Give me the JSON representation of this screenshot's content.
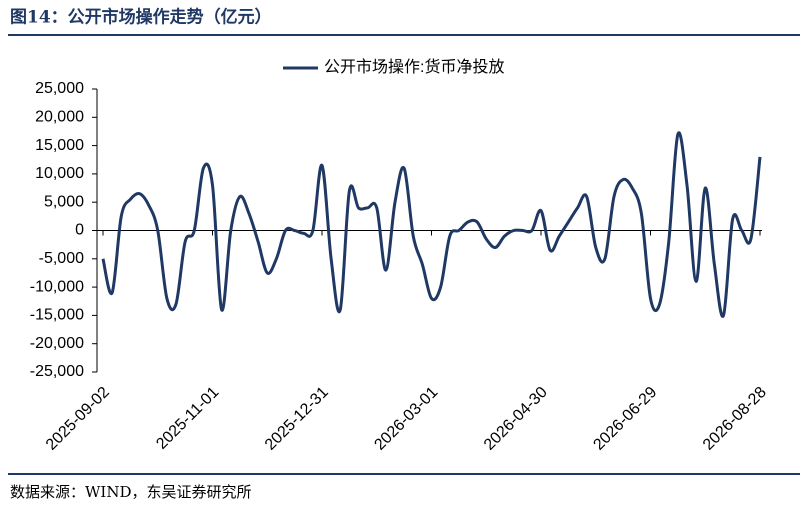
{
  "chart_data": {
    "type": "line",
    "title": "图14：公开市场操作走势（亿元）",
    "source": "数据来源：WIND，东吴证券研究所",
    "categories": [
      "2025-09-02",
      null,
      null,
      null,
      null,
      null,
      null,
      null,
      null,
      null,
      null,
      null,
      "2025-11-01",
      null,
      null,
      null,
      null,
      null,
      null,
      null,
      null,
      null,
      null,
      null,
      "2025-12-31",
      null,
      null,
      null,
      null,
      null,
      null,
      null,
      null,
      null,
      null,
      null,
      "2026-03-01",
      null,
      null,
      null,
      null,
      null,
      null,
      null,
      null,
      null,
      null,
      null,
      "2026-04-30",
      null,
      null,
      null,
      null,
      null,
      null,
      null,
      null,
      null,
      null,
      null,
      "2026-06-29",
      null,
      null,
      null,
      null,
      null,
      null,
      null,
      null,
      null,
      null,
      null,
      "2026-08-28"
    ],
    "series": [
      {
        "name": "公开市场操作:货币净投放",
        "color": "#1f3864",
        "values": [
          -5000,
          -11000,
          2500,
          5500,
          6500,
          4500,
          0,
          -12000,
          -13000,
          -2000,
          0,
          11000,
          8000,
          -14000,
          0,
          6000,
          3000,
          -2000,
          -7500,
          -5000,
          0,
          0,
          -500,
          0,
          11500,
          -5000,
          -14000,
          7000,
          4000,
          4000,
          4000,
          -7000,
          5000,
          11000,
          -1000,
          -6000,
          -12000,
          -10000,
          -1000,
          0,
          1500,
          1500,
          -1500,
          -3000,
          -1000,
          0,
          0,
          0,
          3500,
          -3500,
          -1000,
          1500,
          4000,
          6000,
          -3000,
          -5000,
          6000,
          9000,
          7500,
          3000,
          -12000,
          -13000,
          -2000,
          17000,
          8000,
          -9000,
          7500,
          -6000,
          -15000,
          2000,
          0,
          -1500,
          13000
        ]
      }
    ],
    "ylim": [
      -25000,
      25000
    ],
    "yticks": [
      {
        "value": 25000,
        "label": "25,000"
      },
      {
        "value": 20000,
        "label": "20,000"
      },
      {
        "value": 15000,
        "label": "15,000"
      },
      {
        "value": 10000,
        "label": "10,000"
      },
      {
        "value": 5000,
        "label": "5,000"
      },
      0,
      {
        "value": -5000,
        "label": "-5,000"
      },
      {
        "value": -10000,
        "label": "-10,000"
      },
      {
        "value": -15000,
        "label": "-15,000"
      },
      {
        "value": -20000,
        "label": "-20,000"
      },
      {
        "value": -25000,
        "label": "-25,000"
      }
    ],
    "legend": "top"
  }
}
